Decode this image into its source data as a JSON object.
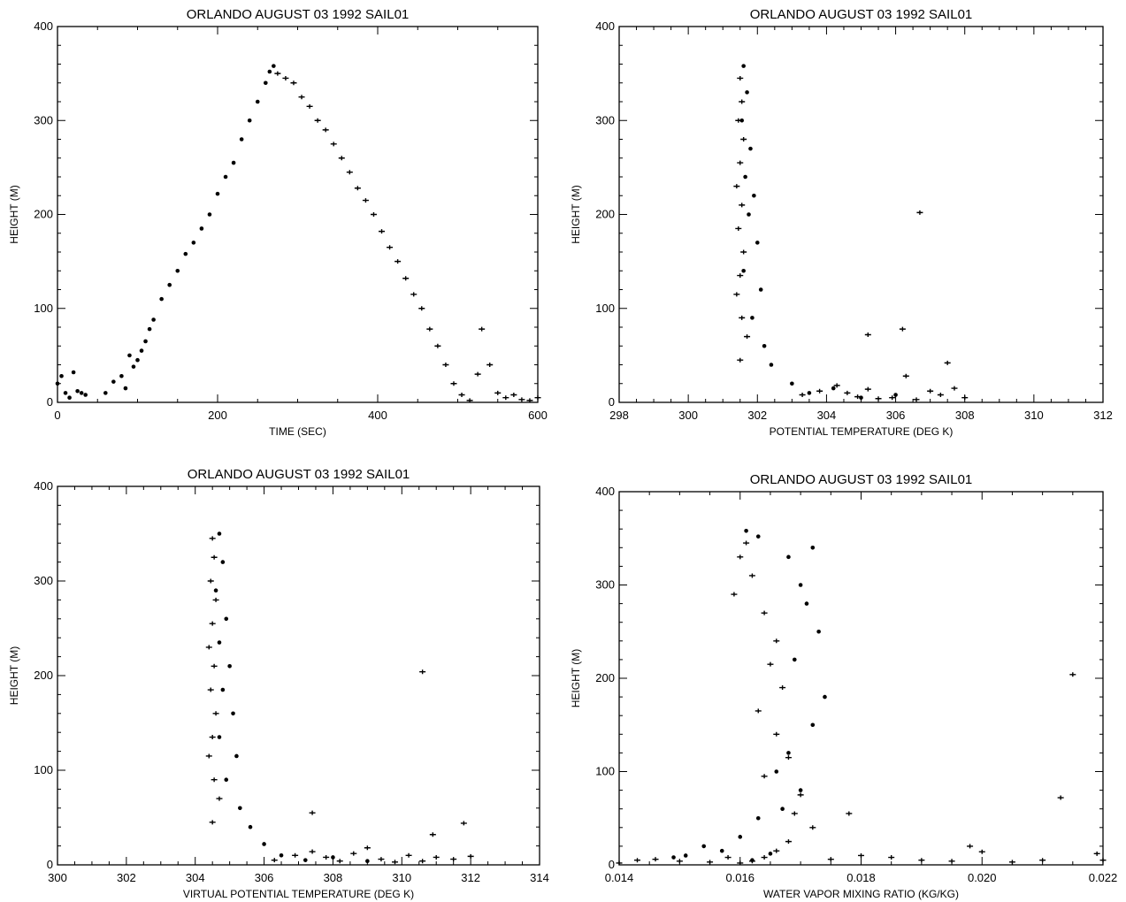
{
  "chart_data": [
    {
      "type": "scatter",
      "title": "ORLANDO AUGUST 03 1992 SAIL01",
      "xlabel": "TIME (SEC)",
      "ylabel": "HEIGHT (M)",
      "xlim": [
        0,
        600
      ],
      "ylim": [
        0,
        400
      ],
      "xticks": [
        0,
        200,
        400,
        600
      ],
      "yticks": [
        0,
        100,
        200,
        300,
        400
      ],
      "series": [
        {
          "marker": "dot",
          "x": [
            0,
            5,
            10,
            15,
            20,
            25,
            30,
            35,
            60,
            70,
            80,
            85,
            90,
            95,
            100,
            105,
            110,
            115,
            120,
            130,
            140,
            150,
            160,
            170,
            180,
            190,
            200,
            210,
            220,
            230,
            240,
            250,
            260,
            265,
            270
          ],
          "y": [
            20,
            28,
            10,
            5,
            32,
            12,
            10,
            8,
            10,
            22,
            28,
            15,
            50,
            38,
            45,
            55,
            65,
            78,
            88,
            110,
            125,
            140,
            158,
            170,
            185,
            200,
            222,
            240,
            255,
            280,
            300,
            320,
            340,
            352,
            358
          ]
        },
        {
          "marker": "plus",
          "x": [
            275,
            285,
            295,
            305,
            315,
            325,
            335,
            345,
            355,
            365,
            375,
            385,
            395,
            405,
            415,
            425,
            435,
            445,
            455,
            465,
            475,
            485,
            495,
            505,
            515,
            525,
            530,
            540,
            550,
            560,
            570,
            580,
            590,
            600
          ],
          "y": [
            350,
            345,
            340,
            325,
            315,
            300,
            290,
            275,
            260,
            245,
            228,
            215,
            200,
            182,
            165,
            150,
            132,
            115,
            100,
            78,
            60,
            40,
            20,
            8,
            2,
            30,
            78,
            40,
            10,
            5,
            8,
            3,
            2,
            5
          ]
        }
      ]
    },
    {
      "type": "scatter",
      "title": "ORLANDO AUGUST 03 1992 SAIL01",
      "xlabel": "POTENTIAL TEMPERATURE (DEG K)",
      "ylabel": "HEIGHT (M)",
      "xlim": [
        298,
        312
      ],
      "ylim": [
        0,
        400
      ],
      "xticks": [
        298,
        300,
        302,
        304,
        306,
        308,
        310,
        312
      ],
      "yticks": [
        0,
        100,
        200,
        300,
        400
      ],
      "series": [
        {
          "marker": "dot",
          "x": [
            301.6,
            301.7,
            301.55,
            301.8,
            301.65,
            301.9,
            301.75,
            302.0,
            301.6,
            302.1,
            301.85,
            302.2,
            302.4,
            303.0,
            303.5,
            304.2,
            305.0,
            306.0
          ],
          "y": [
            358,
            330,
            300,
            270,
            240,
            220,
            200,
            170,
            140,
            120,
            90,
            60,
            40,
            20,
            10,
            15,
            5,
            8
          ]
        },
        {
          "marker": "plus",
          "x": [
            301.5,
            301.55,
            301.45,
            301.6,
            301.5,
            301.4,
            301.55,
            301.45,
            301.6,
            301.5,
            301.4,
            301.55,
            301.7,
            301.5,
            303.3,
            303.8,
            304.3,
            304.6,
            304.9,
            305.2,
            305.5,
            305.9,
            306.3,
            306.6,
            307.0,
            307.3,
            307.7,
            308.0,
            306.7,
            305.2,
            306.2,
            307.5
          ],
          "y": [
            345,
            320,
            300,
            280,
            255,
            230,
            210,
            185,
            160,
            135,
            115,
            90,
            70,
            45,
            8,
            12,
            18,
            10,
            6,
            14,
            4,
            5,
            28,
            3,
            12,
            8,
            15,
            5,
            202,
            72,
            78,
            42
          ]
        }
      ]
    },
    {
      "type": "scatter",
      "title": "ORLANDO AUGUST 03 1992 SAIL01",
      "xlabel": "VIRTUAL POTENTIAL TEMPERATURE (DEG K)",
      "ylabel": "HEIGHT (M)",
      "xlim": [
        300,
        314
      ],
      "ylim": [
        0,
        400
      ],
      "xticks": [
        300,
        302,
        304,
        306,
        308,
        310,
        312,
        314
      ],
      "yticks": [
        0,
        100,
        200,
        300,
        400
      ],
      "series": [
        {
          "marker": "dot",
          "x": [
            304.7,
            304.8,
            304.6,
            304.9,
            304.7,
            305.0,
            304.8,
            305.1,
            304.7,
            305.2,
            304.9,
            305.3,
            305.6,
            306.0,
            306.5,
            307.2,
            308.0,
            309.0
          ],
          "y": [
            350,
            320,
            290,
            260,
            235,
            210,
            185,
            160,
            135,
            115,
            90,
            60,
            40,
            22,
            10,
            5,
            8,
            4
          ]
        },
        {
          "marker": "plus",
          "x": [
            304.5,
            304.55,
            304.45,
            304.6,
            304.5,
            304.4,
            304.55,
            304.45,
            304.6,
            304.5,
            304.4,
            304.55,
            304.7,
            304.5,
            306.3,
            306.9,
            307.4,
            307.8,
            308.2,
            308.6,
            309.0,
            309.4,
            309.8,
            310.2,
            310.6,
            311.0,
            311.5,
            312.0,
            310.6,
            307.4,
            310.9,
            311.8
          ],
          "y": [
            345,
            325,
            300,
            280,
            255,
            230,
            210,
            185,
            160,
            135,
            115,
            90,
            70,
            45,
            5,
            10,
            14,
            8,
            4,
            12,
            18,
            6,
            3,
            10,
            4,
            8,
            6,
            9,
            204,
            55,
            32,
            44
          ]
        }
      ]
    },
    {
      "type": "scatter",
      "title": "ORLANDO AUGUST 03 1992 SAIL01",
      "xlabel": "WATER VAPOR MIXING RATIO (KG/KG)",
      "ylabel": "HEIGHT (M)",
      "xlim": [
        0.014,
        0.022
      ],
      "ylim": [
        0,
        400
      ],
      "xticks": [
        0.014,
        0.016,
        0.018,
        0.02,
        0.022
      ],
      "yticks": [
        0,
        100,
        200,
        300,
        400
      ],
      "series": [
        {
          "marker": "dot",
          "x": [
            0.0161,
            0.0163,
            0.0168,
            0.017,
            0.0172,
            0.0171,
            0.0173,
            0.0169,
            0.0174,
            0.0172,
            0.0168,
            0.0166,
            0.017,
            0.0167,
            0.0163,
            0.016,
            0.0157,
            0.0154,
            0.0151,
            0.0149,
            0.0162,
            0.0165
          ],
          "y": [
            358,
            352,
            330,
            300,
            340,
            280,
            250,
            220,
            180,
            150,
            120,
            100,
            80,
            60,
            50,
            30,
            15,
            20,
            10,
            8,
            5,
            12
          ]
        },
        {
          "marker": "plus",
          "x": [
            0.0161,
            0.016,
            0.0162,
            0.0159,
            0.0164,
            0.0166,
            0.0165,
            0.0167,
            0.0163,
            0.0166,
            0.0168,
            0.0164,
            0.017,
            0.0169,
            0.0172,
            0.0168,
            0.0166,
            0.0164,
            0.0162,
            0.016,
            0.014,
            0.0143,
            0.0146,
            0.015,
            0.0155,
            0.0158,
            0.0175,
            0.0178,
            0.018,
            0.0185,
            0.019,
            0.0195,
            0.0198,
            0.02,
            0.0205,
            0.021,
            0.0213,
            0.0215,
            0.0219,
            0.022
          ],
          "y": [
            345,
            330,
            310,
            290,
            270,
            240,
            215,
            190,
            165,
            140,
            115,
            95,
            75,
            55,
            40,
            25,
            15,
            8,
            4,
            2,
            2,
            5,
            6,
            4,
            3,
            8,
            6,
            55,
            10,
            8,
            5,
            4,
            20,
            14,
            3,
            5,
            72,
            204,
            12,
            5
          ]
        }
      ]
    }
  ]
}
